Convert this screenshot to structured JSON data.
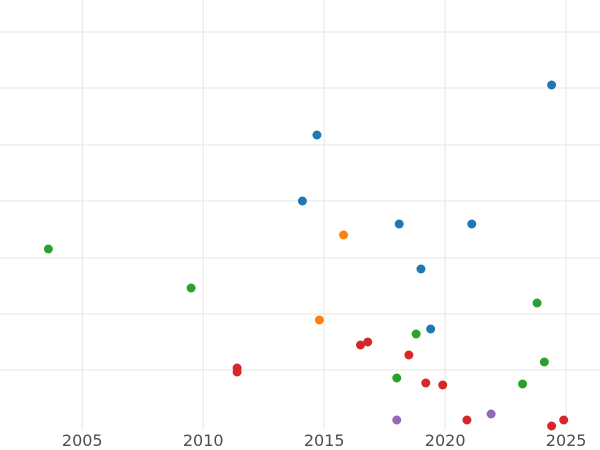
{
  "chart_data": {
    "type": "scatter",
    "title": "",
    "xlabel": "",
    "ylabel": "",
    "xlim": [
      2001.6,
      2026.4
    ],
    "ylim": [
      0,
      430
    ],
    "x_ticks": [
      2005,
      2010,
      2015,
      2020,
      2025
    ],
    "x_tick_labels": [
      "2005",
      "2010",
      "2015",
      "2020",
      "2025"
    ],
    "y_gridlines": [
      32,
      88,
      145,
      201,
      258,
      314,
      370
    ],
    "grid": true,
    "legend": "none",
    "series": [
      {
        "color": "#1f77b4",
        "points": [
          {
            "x": 2024.4,
            "y": 85
          },
          {
            "x": 2014.7,
            "y": 135
          },
          {
            "x": 2014.1,
            "y": 201
          },
          {
            "x": 2018.1,
            "y": 224
          },
          {
            "x": 2021.1,
            "y": 224
          },
          {
            "x": 2019.0,
            "y": 269
          },
          {
            "x": 2019.4,
            "y": 329
          }
        ]
      },
      {
        "color": "#ff7f0e",
        "points": [
          {
            "x": 2015.8,
            "y": 235
          },
          {
            "x": 2014.8,
            "y": 320
          }
        ]
      },
      {
        "color": "#2ca02c",
        "points": [
          {
            "x": 2003.6,
            "y": 249
          },
          {
            "x": 2009.5,
            "y": 288
          },
          {
            "x": 2023.8,
            "y": 303
          },
          {
            "x": 2018.8,
            "y": 334
          },
          {
            "x": 2024.1,
            "y": 362
          },
          {
            "x": 2018.0,
            "y": 378
          },
          {
            "x": 2023.2,
            "y": 384
          }
        ]
      },
      {
        "color": "#d62728",
        "points": [
          {
            "x": 2011.4,
            "y": 368
          },
          {
            "x": 2011.4,
            "y": 372
          },
          {
            "x": 2016.5,
            "y": 345
          },
          {
            "x": 2016.8,
            "y": 342
          },
          {
            "x": 2018.5,
            "y": 355
          },
          {
            "x": 2019.2,
            "y": 383
          },
          {
            "x": 2019.9,
            "y": 385
          },
          {
            "x": 2020.9,
            "y": 420
          },
          {
            "x": 2024.4,
            "y": 426
          },
          {
            "x": 2024.9,
            "y": 420
          }
        ]
      },
      {
        "color": "#9467bd",
        "points": [
          {
            "x": 2018.0,
            "y": 420
          },
          {
            "x": 2021.9,
            "y": 414
          }
        ]
      }
    ]
  }
}
